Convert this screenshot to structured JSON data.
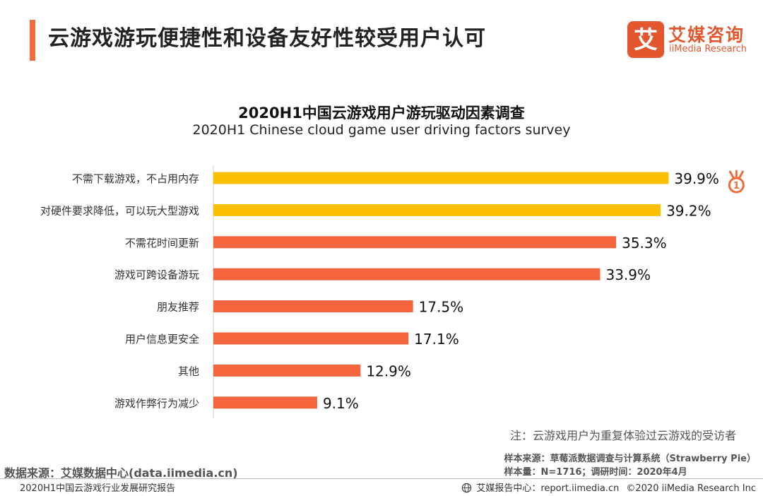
{
  "header": {
    "title": "云游戏游玩便捷性和设备友好性较受用户认可",
    "logo_char": "艾",
    "logo_cn": "艾媒咨询",
    "logo_en": "iiMedia Research"
  },
  "chart_data": {
    "type": "bar",
    "orientation": "horizontal",
    "title": "2020H1中国云游戏用户游玩驱动因素调查",
    "subtitle": "2020H1 Chinese cloud game user driving factors survey",
    "categories": [
      "不需下载游戏，不占用内存",
      "对硬件要求降低，可以玩大型游戏",
      "不需花时间更新",
      "游戏可跨设备游玩",
      "朋友推荐",
      "用户信息更安全",
      "其他",
      "游戏作弊行为减少"
    ],
    "values": [
      39.9,
      39.2,
      35.3,
      33.9,
      17.5,
      17.1,
      12.9,
      9.1
    ],
    "value_labels": [
      "39.9%",
      "39.2%",
      "35.3%",
      "33.9%",
      "17.5%",
      "17.1%",
      "12.9%",
      "9.1%"
    ],
    "highlight_count": 2,
    "xlim": [
      0,
      40
    ],
    "unit": "%",
    "badge_text": "1"
  },
  "colors": {
    "accent": "#f26b3a",
    "bar_highlight": "#fcc000",
    "bar_default": "#f5643c",
    "brand": "#e4572e"
  },
  "notes": {
    "note": "注：云游戏用户为重复体验过云游戏的受访者",
    "source_left": "数据来源：艾媒数据中心(data.iimedia.cn)",
    "source_right_1": "样本来源：草莓派数据调查与计算系统（Strawberry Pie）",
    "source_right_2": "样本量：N=1716；调研时间：2020年4月"
  },
  "footer": {
    "report": "2020H1中国云游戏行业发展研究报告",
    "center": "艾媒报告中心：report.iimedia.cn",
    "copyright": "©2020 iiMedia Research Inc"
  }
}
